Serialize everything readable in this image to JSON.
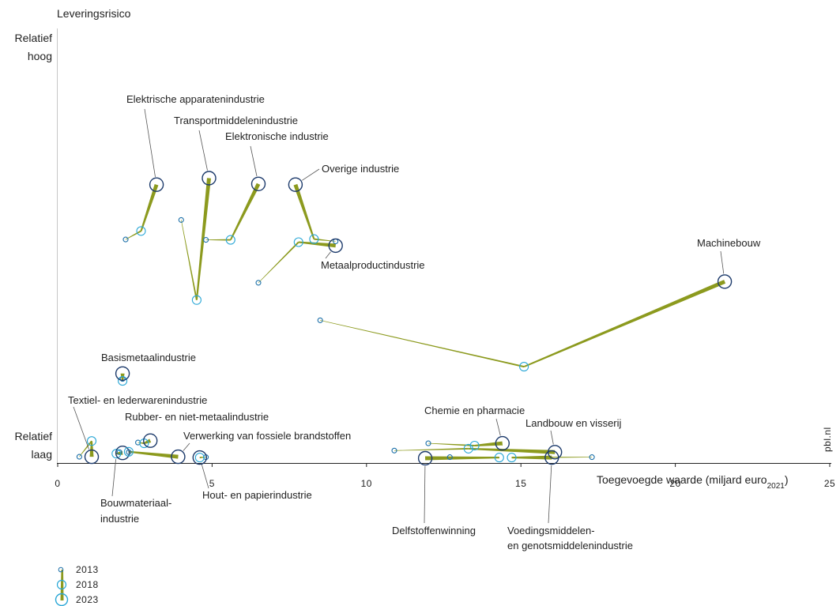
{
  "chart_data": {
    "type": "scatter",
    "title": "",
    "ylabel": "Leveringsrisico",
    "ylabel_high": [
      "Relatief",
      "hoog"
    ],
    "ylabel_low": [
      "Relatief",
      "laag"
    ],
    "xlabel": "Toegevoegde waarde  (miljard euro",
    "xlabel_sub": "2021",
    "xlabel_end": ")",
    "xlim": [
      0,
      25
    ],
    "xticks": [
      0,
      5,
      10,
      15,
      20,
      25
    ],
    "ylim": [
      0,
      100
    ],
    "grid": false,
    "source_tag": "pbl.nl",
    "colors": {
      "ring_2013": "#1b6fa8",
      "ring_2018": "#2aa7d6",
      "ring_2023": "#1c3a6b",
      "line": "#8c9a1e"
    },
    "legend": [
      "2013",
      "2018",
      "2023"
    ],
    "series": [
      {
        "name": "Elektrische apparatenindustrie",
        "points": [
          [
            2.2,
            57.3
          ],
          [
            2.7,
            59.5
          ],
          [
            3.2,
            71.6
          ]
        ]
      },
      {
        "name": "Transportmiddelenindustrie",
        "points": [
          [
            4.0,
            62.4
          ],
          [
            4.5,
            41.5
          ],
          [
            4.9,
            73.3
          ]
        ]
      },
      {
        "name": "Elektronische industrie",
        "points": [
          [
            4.8,
            57.2
          ],
          [
            5.6,
            57.2
          ],
          [
            6.5,
            71.8
          ]
        ]
      },
      {
        "name": "Overige industrie",
        "points": [
          [
            9.0,
            56.8
          ],
          [
            8.3,
            57.4
          ],
          [
            7.7,
            71.6
          ]
        ]
      },
      {
        "name": "Metaalproductindustrie",
        "points": [
          [
            6.5,
            46.0
          ],
          [
            7.8,
            56.6
          ],
          [
            9.0,
            55.7
          ]
        ]
      },
      {
        "name": "Machinebouw",
        "points": [
          [
            8.5,
            36.2
          ],
          [
            15.1,
            24.1
          ],
          [
            21.6,
            46.3
          ]
        ]
      },
      {
        "name": "Basismetaalindustrie",
        "points": [
          [
            2.1,
            20.9
          ],
          [
            2.1,
            20.4
          ],
          [
            2.1,
            22.3
          ]
        ]
      },
      {
        "name": "Textiel- en lederwarenindustrie",
        "points": [
          [
            0.7,
            0.6
          ],
          [
            1.1,
            4.7
          ],
          [
            1.1,
            0.6
          ]
        ]
      },
      {
        "name": "Bouwmateriaal-industrie",
        "points": [
          [
            2.0,
            1.8
          ],
          [
            1.9,
            1.4
          ],
          [
            2.1,
            1.6
          ]
        ]
      },
      {
        "name": "Rubber- en niet-metaalindustrie",
        "points": [
          [
            2.6,
            4.3
          ],
          [
            2.8,
            4.1
          ],
          [
            3.0,
            4.8
          ]
        ]
      },
      {
        "name": "Verwerking van fossiele brandstoffen",
        "points": [
          [
            2.3,
            1.8
          ],
          [
            2.3,
            1.9
          ],
          [
            3.9,
            0.6
          ]
        ]
      },
      {
        "name": "Hout- en papierindustrie",
        "points": [
          [
            4.8,
            0.5
          ],
          [
            4.6,
            0.4
          ],
          [
            4.6,
            0.4
          ]
        ]
      },
      {
        "name": "Chemie en pharmacie",
        "points": [
          [
            12.0,
            4.1
          ],
          [
            13.5,
            3.5
          ],
          [
            14.4,
            4.1
          ]
        ]
      },
      {
        "name": "Landbouw en visserij",
        "points": [
          [
            10.9,
            2.2
          ],
          [
            13.3,
            2.7
          ],
          [
            16.1,
            1.8
          ]
        ]
      },
      {
        "name": "Delfstoffenwinning",
        "points": [
          [
            12.7,
            0.5
          ],
          [
            14.3,
            0.4
          ],
          [
            11.9,
            0.2
          ]
        ]
      },
      {
        "name": "Voedingsmiddelen- en genotsmiddelenindustrie",
        "points": [
          [
            17.3,
            0.5
          ],
          [
            14.7,
            0.4
          ],
          [
            16.0,
            0.4
          ]
        ]
      }
    ],
    "annotations": {
      "elektrisch": "Elektrische apparatenindustrie",
      "transport": "Transportmiddelenindustrie",
      "elektronisch": "Elektronische industrie",
      "overig": "Overige industrie",
      "metaalproduct": "Metaalproductindustrie",
      "machinebouw": "Machinebouw",
      "basismetaal": "Basismetaalindustrie",
      "textiel": "Textiel- en lederwarenindustrie",
      "rubber": "Rubber- en niet-metaalindustrie",
      "fossiel": "Verwerking van fossiele brandstoffen",
      "chemie": "Chemie en pharmacie",
      "landbouw": "Landbouw en visserij",
      "bouwmateriaal_1": "Bouwmateriaal-",
      "bouwmateriaal_2": "industrie",
      "hout": "Hout- en papierindustrie",
      "delfstoffen": "Delfstoffenwinning",
      "voeding_1": "Voedingsmiddelen-",
      "voeding_2": "en genotsmiddelenindustrie"
    }
  }
}
